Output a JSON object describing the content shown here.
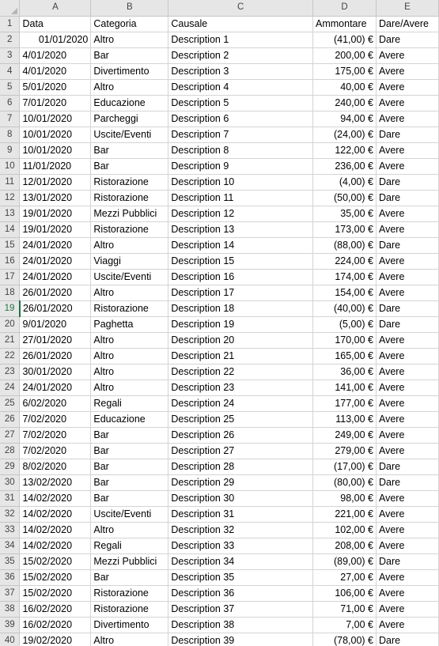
{
  "columns": [
    "",
    "A",
    "B",
    "C",
    "D",
    "E"
  ],
  "rows": [
    {
      "n": "1",
      "a": "Data",
      "b": "Categoria",
      "c": "Causale",
      "d": "Ammontare",
      "e": "Dare/Avere"
    },
    {
      "n": "2",
      "a": "01/01/2020",
      "b": "Altro",
      "c": "Description 1",
      "d": "(41,00) €",
      "e": "Dare"
    },
    {
      "n": "3",
      "a": "4/01/2020",
      "b": "Bar",
      "c": "Description 2",
      "d": "200,00 €",
      "e": "Avere"
    },
    {
      "n": "4",
      "a": "4/01/2020",
      "b": "Divertimento",
      "c": "Description 3",
      "d": "175,00 €",
      "e": "Avere"
    },
    {
      "n": "5",
      "a": "5/01/2020",
      "b": "Altro",
      "c": "Description 4",
      "d": "40,00 €",
      "e": "Avere"
    },
    {
      "n": "6",
      "a": "7/01/2020",
      "b": "Educazione",
      "c": "Description 5",
      "d": "240,00 €",
      "e": "Avere"
    },
    {
      "n": "7",
      "a": "10/01/2020",
      "b": "Parcheggi",
      "c": "Description 6",
      "d": "94,00 €",
      "e": "Avere"
    },
    {
      "n": "8",
      "a": "10/01/2020",
      "b": "Uscite/Eventi",
      "c": "Description 7",
      "d": "(24,00) €",
      "e": "Dare"
    },
    {
      "n": "9",
      "a": "10/01/2020",
      "b": "Bar",
      "c": "Description 8",
      "d": "122,00 €",
      "e": "Avere"
    },
    {
      "n": "10",
      "a": "11/01/2020",
      "b": "Bar",
      "c": "Description 9",
      "d": "236,00 €",
      "e": "Avere"
    },
    {
      "n": "11",
      "a": "12/01/2020",
      "b": "Ristorazione",
      "c": "Description 10",
      "d": "(4,00) €",
      "e": "Dare"
    },
    {
      "n": "12",
      "a": "13/01/2020",
      "b": "Ristorazione",
      "c": "Description 11",
      "d": "(50,00) €",
      "e": "Dare"
    },
    {
      "n": "13",
      "a": "19/01/2020",
      "b": "Mezzi Pubblici",
      "c": "Description 12",
      "d": "35,00 €",
      "e": "Avere"
    },
    {
      "n": "14",
      "a": "19/01/2020",
      "b": "Ristorazione",
      "c": "Description 13",
      "d": "173,00 €",
      "e": "Avere"
    },
    {
      "n": "15",
      "a": "24/01/2020",
      "b": "Altro",
      "c": "Description 14",
      "d": "(88,00) €",
      "e": "Dare"
    },
    {
      "n": "16",
      "a": "24/01/2020",
      "b": "Viaggi",
      "c": "Description 15",
      "d": "224,00 €",
      "e": "Avere"
    },
    {
      "n": "17",
      "a": "24/01/2020",
      "b": "Uscite/Eventi",
      "c": "Description 16",
      "d": "174,00 €",
      "e": "Avere"
    },
    {
      "n": "18",
      "a": "26/01/2020",
      "b": "Altro",
      "c": "Description 17",
      "d": "154,00 €",
      "e": "Avere"
    },
    {
      "n": "19",
      "a": "26/01/2020",
      "b": "Ristorazione",
      "c": "Description 18",
      "d": "(40,00) €",
      "e": "Dare"
    },
    {
      "n": "20",
      "a": "9/01/2020",
      "b": "Paghetta",
      "c": "Description 19",
      "d": "(5,00) €",
      "e": "Dare"
    },
    {
      "n": "21",
      "a": "27/01/2020",
      "b": "Altro",
      "c": "Description 20",
      "d": "170,00 €",
      "e": "Avere"
    },
    {
      "n": "22",
      "a": "26/01/2020",
      "b": "Altro",
      "c": "Description 21",
      "d": "165,00 €",
      "e": "Avere"
    },
    {
      "n": "23",
      "a": "30/01/2020",
      "b": "Altro",
      "c": "Description 22",
      "d": "36,00 €",
      "e": "Avere"
    },
    {
      "n": "24",
      "a": "24/01/2020",
      "b": "Altro",
      "c": "Description 23",
      "d": "141,00 €",
      "e": "Avere"
    },
    {
      "n": "25",
      "a": "6/02/2020",
      "b": "Regali",
      "c": "Description 24",
      "d": "177,00 €",
      "e": "Avere"
    },
    {
      "n": "26",
      "a": "7/02/2020",
      "b": "Educazione",
      "c": "Description 25",
      "d": "113,00 €",
      "e": "Avere"
    },
    {
      "n": "27",
      "a": "7/02/2020",
      "b": "Bar",
      "c": "Description 26",
      "d": "249,00 €",
      "e": "Avere"
    },
    {
      "n": "28",
      "a": "7/02/2020",
      "b": "Bar",
      "c": "Description 27",
      "d": "279,00 €",
      "e": "Avere"
    },
    {
      "n": "29",
      "a": "8/02/2020",
      "b": "Bar",
      "c": "Description 28",
      "d": "(17,00) €",
      "e": "Dare"
    },
    {
      "n": "30",
      "a": "13/02/2020",
      "b": "Bar",
      "c": "Description 29",
      "d": "(80,00) €",
      "e": "Dare"
    },
    {
      "n": "31",
      "a": "14/02/2020",
      "b": "Bar",
      "c": "Description 30",
      "d": "98,00 €",
      "e": "Avere"
    },
    {
      "n": "32",
      "a": "14/02/2020",
      "b": "Uscite/Eventi",
      "c": "Description 31",
      "d": "221,00 €",
      "e": "Avere"
    },
    {
      "n": "33",
      "a": "14/02/2020",
      "b": "Altro",
      "c": "Description 32",
      "d": "102,00 €",
      "e": "Avere"
    },
    {
      "n": "34",
      "a": "14/02/2020",
      "b": "Regali",
      "c": "Description 33",
      "d": "208,00 €",
      "e": "Avere"
    },
    {
      "n": "35",
      "a": "15/02/2020",
      "b": "Mezzi Pubblici",
      "c": "Description 34",
      "d": "(89,00) €",
      "e": "Dare"
    },
    {
      "n": "36",
      "a": "15/02/2020",
      "b": "Bar",
      "c": "Description 35",
      "d": "27,00 €",
      "e": "Avere"
    },
    {
      "n": "37",
      "a": "15/02/2020",
      "b": "Ristorazione",
      "c": "Description 36",
      "d": "106,00 €",
      "e": "Avere"
    },
    {
      "n": "38",
      "a": "16/02/2020",
      "b": "Ristorazione",
      "c": "Description 37",
      "d": "71,00 €",
      "e": "Avere"
    },
    {
      "n": "39",
      "a": "16/02/2020",
      "b": "Divertimento",
      "c": "Description 38",
      "d": "7,00 €",
      "e": "Avere"
    },
    {
      "n": "40",
      "a": "19/02/2020",
      "b": "Altro",
      "c": "Description 39",
      "d": "(78,00) €",
      "e": "Dare"
    }
  ],
  "selected_row": "19",
  "colors": {
    "header_bg": "#e6e6e6",
    "grid": "#d4d4d4",
    "accent": "#217346"
  }
}
